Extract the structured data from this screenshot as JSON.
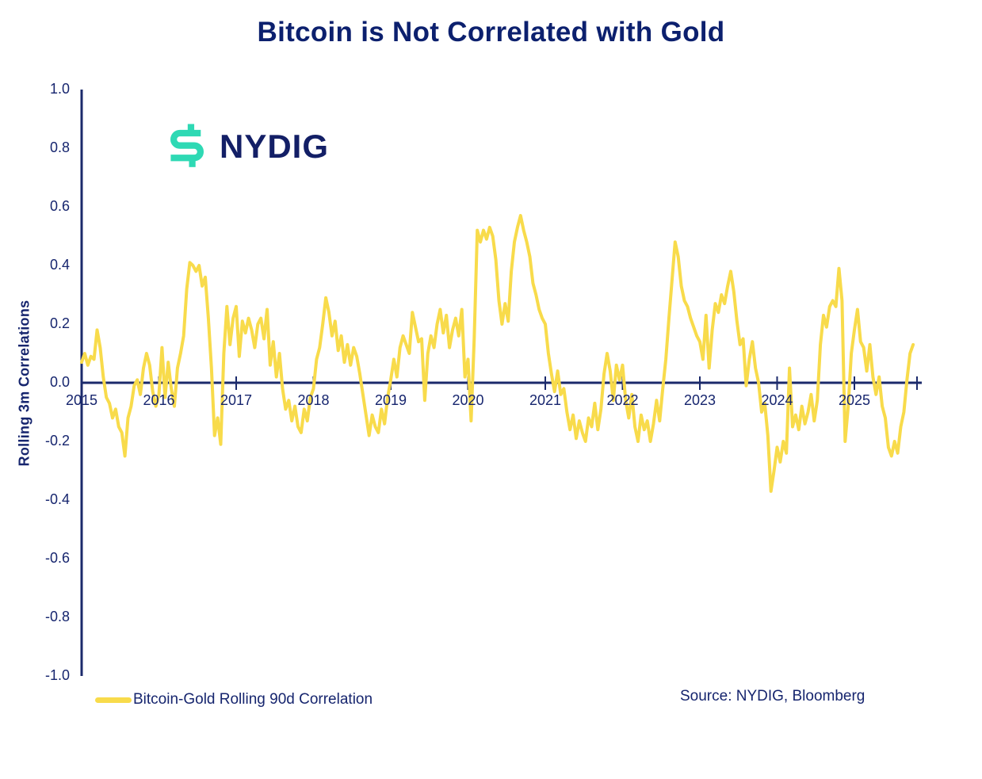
{
  "title": "Bitcoin is Not Correlated with Gold",
  "logo": {
    "text": "NYDIG"
  },
  "legend": {
    "label": "Bitcoin-Gold Rolling 90d Correlation"
  },
  "source": "Source: NYDIG, Bloomberg",
  "colors": {
    "navy_axis": "#1b2a6b",
    "navy_text": "#16256e",
    "title_navy": "#0c206e",
    "line_yellow": "#f8db4b",
    "logo_teal": "#2ed9b4",
    "logo_navy": "#131f66"
  },
  "chart_data": {
    "type": "line",
    "title": "Bitcoin is Not Correlated with Gold",
    "xlabel": "",
    "ylabel": "Rolling 3m Correlations",
    "ylim": [
      -1.0,
      1.0
    ],
    "xlim": [
      2015,
      2025.85
    ],
    "grid": false,
    "legend_position": "bottom-left",
    "y_ticks": [
      "1.0",
      "0.8",
      "0.6",
      "0.4",
      "0.2",
      "0.0",
      "-0.2",
      "-0.4",
      "-0.6",
      "-0.8",
      "-1.0"
    ],
    "x_ticks": [
      "2015",
      "2016",
      "2017",
      "2018",
      "2019",
      "2020",
      "2021",
      "2022",
      "2023",
      "2024",
      "2025"
    ],
    "series": [
      {
        "name": "Bitcoin-Gold Rolling 90d Correlation",
        "color": "#f8db4b",
        "points": [
          [
            2015.0,
            0.07
          ],
          [
            2015.04,
            0.1
          ],
          [
            2015.08,
            0.06
          ],
          [
            2015.12,
            0.09
          ],
          [
            2015.16,
            0.08
          ],
          [
            2015.2,
            0.18
          ],
          [
            2015.24,
            0.12
          ],
          [
            2015.28,
            0.02
          ],
          [
            2015.32,
            -0.05
          ],
          [
            2015.36,
            -0.07
          ],
          [
            2015.4,
            -0.12
          ],
          [
            2015.44,
            -0.09
          ],
          [
            2015.48,
            -0.15
          ],
          [
            2015.52,
            -0.17
          ],
          [
            2015.56,
            -0.25
          ],
          [
            2015.6,
            -0.12
          ],
          [
            2015.64,
            -0.08
          ],
          [
            2015.68,
            -0.01
          ],
          [
            2015.72,
            0.01
          ],
          [
            2015.76,
            -0.04
          ],
          [
            2015.8,
            0.05
          ],
          [
            2015.84,
            0.1
          ],
          [
            2015.88,
            0.06
          ],
          [
            2015.92,
            -0.03
          ],
          [
            2015.96,
            -0.08
          ],
          [
            2016.0,
            -0.04
          ],
          [
            2016.04,
            0.12
          ],
          [
            2016.08,
            -0.05
          ],
          [
            2016.12,
            0.07
          ],
          [
            2016.16,
            -0.02
          ],
          [
            2016.2,
            -0.08
          ],
          [
            2016.24,
            0.05
          ],
          [
            2016.28,
            0.1
          ],
          [
            2016.32,
            0.16
          ],
          [
            2016.36,
            0.32
          ],
          [
            2016.4,
            0.41
          ],
          [
            2016.44,
            0.4
          ],
          [
            2016.48,
            0.38
          ],
          [
            2016.52,
            0.4
          ],
          [
            2016.56,
            0.33
          ],
          [
            2016.6,
            0.36
          ],
          [
            2016.64,
            0.22
          ],
          [
            2016.68,
            0.05
          ],
          [
            2016.72,
            -0.18
          ],
          [
            2016.76,
            -0.12
          ],
          [
            2016.8,
            -0.21
          ],
          [
            2016.84,
            0.1
          ],
          [
            2016.88,
            0.26
          ],
          [
            2016.92,
            0.13
          ],
          [
            2016.96,
            0.22
          ],
          [
            2017.0,
            0.26
          ],
          [
            2017.04,
            0.09
          ],
          [
            2017.08,
            0.21
          ],
          [
            2017.12,
            0.17
          ],
          [
            2017.16,
            0.22
          ],
          [
            2017.2,
            0.18
          ],
          [
            2017.24,
            0.12
          ],
          [
            2017.28,
            0.2
          ],
          [
            2017.32,
            0.22
          ],
          [
            2017.36,
            0.15
          ],
          [
            2017.4,
            0.25
          ],
          [
            2017.44,
            0.06
          ],
          [
            2017.48,
            0.14
          ],
          [
            2017.52,
            0.02
          ],
          [
            2017.56,
            0.1
          ],
          [
            2017.6,
            -0.02
          ],
          [
            2017.64,
            -0.09
          ],
          [
            2017.68,
            -0.06
          ],
          [
            2017.72,
            -0.13
          ],
          [
            2017.76,
            -0.08
          ],
          [
            2017.8,
            -0.15
          ],
          [
            2017.84,
            -0.17
          ],
          [
            2017.88,
            -0.09
          ],
          [
            2017.92,
            -0.13
          ],
          [
            2017.96,
            -0.05
          ],
          [
            2018.0,
            -0.02
          ],
          [
            2018.04,
            0.08
          ],
          [
            2018.08,
            0.12
          ],
          [
            2018.12,
            0.2
          ],
          [
            2018.16,
            0.29
          ],
          [
            2018.2,
            0.24
          ],
          [
            2018.24,
            0.16
          ],
          [
            2018.28,
            0.21
          ],
          [
            2018.32,
            0.11
          ],
          [
            2018.36,
            0.16
          ],
          [
            2018.4,
            0.07
          ],
          [
            2018.44,
            0.13
          ],
          [
            2018.48,
            0.06
          ],
          [
            2018.52,
            0.12
          ],
          [
            2018.56,
            0.09
          ],
          [
            2018.6,
            0.03
          ],
          [
            2018.64,
            -0.04
          ],
          [
            2018.68,
            -0.11
          ],
          [
            2018.72,
            -0.18
          ],
          [
            2018.76,
            -0.11
          ],
          [
            2018.8,
            -0.15
          ],
          [
            2018.84,
            -0.17
          ],
          [
            2018.88,
            -0.09
          ],
          [
            2018.92,
            -0.14
          ],
          [
            2018.96,
            -0.05
          ],
          [
            2019.0,
            0.01
          ],
          [
            2019.04,
            0.08
          ],
          [
            2019.08,
            0.02
          ],
          [
            2019.12,
            0.12
          ],
          [
            2019.16,
            0.16
          ],
          [
            2019.2,
            0.13
          ],
          [
            2019.24,
            0.1
          ],
          [
            2019.28,
            0.24
          ],
          [
            2019.32,
            0.19
          ],
          [
            2019.36,
            0.14
          ],
          [
            2019.4,
            0.15
          ],
          [
            2019.44,
            -0.06
          ],
          [
            2019.48,
            0.1
          ],
          [
            2019.52,
            0.16
          ],
          [
            2019.56,
            0.12
          ],
          [
            2019.6,
            0.2
          ],
          [
            2019.64,
            0.25
          ],
          [
            2019.68,
            0.17
          ],
          [
            2019.72,
            0.23
          ],
          [
            2019.76,
            0.12
          ],
          [
            2019.8,
            0.18
          ],
          [
            2019.84,
            0.22
          ],
          [
            2019.88,
            0.16
          ],
          [
            2019.92,
            0.25
          ],
          [
            2019.96,
            0.02
          ],
          [
            2020.0,
            0.08
          ],
          [
            2020.04,
            -0.13
          ],
          [
            2020.08,
            0.15
          ],
          [
            2020.12,
            0.52
          ],
          [
            2020.16,
            0.48
          ],
          [
            2020.2,
            0.52
          ],
          [
            2020.24,
            0.49
          ],
          [
            2020.28,
            0.53
          ],
          [
            2020.32,
            0.5
          ],
          [
            2020.36,
            0.42
          ],
          [
            2020.4,
            0.28
          ],
          [
            2020.44,
            0.2
          ],
          [
            2020.48,
            0.27
          ],
          [
            2020.52,
            0.21
          ],
          [
            2020.56,
            0.38
          ],
          [
            2020.6,
            0.48
          ],
          [
            2020.64,
            0.53
          ],
          [
            2020.68,
            0.57
          ],
          [
            2020.72,
            0.52
          ],
          [
            2020.76,
            0.48
          ],
          [
            2020.8,
            0.43
          ],
          [
            2020.84,
            0.34
          ],
          [
            2020.88,
            0.3
          ],
          [
            2020.92,
            0.25
          ],
          [
            2020.96,
            0.22
          ],
          [
            2021.0,
            0.2
          ],
          [
            2021.04,
            0.1
          ],
          [
            2021.08,
            0.03
          ],
          [
            2021.12,
            -0.03
          ],
          [
            2021.16,
            0.04
          ],
          [
            2021.2,
            -0.04
          ],
          [
            2021.24,
            -0.02
          ],
          [
            2021.28,
            -0.1
          ],
          [
            2021.32,
            -0.16
          ],
          [
            2021.36,
            -0.11
          ],
          [
            2021.4,
            -0.19
          ],
          [
            2021.44,
            -0.13
          ],
          [
            2021.48,
            -0.17
          ],
          [
            2021.52,
            -0.2
          ],
          [
            2021.56,
            -0.12
          ],
          [
            2021.6,
            -0.15
          ],
          [
            2021.64,
            -0.07
          ],
          [
            2021.68,
            -0.16
          ],
          [
            2021.72,
            -0.09
          ],
          [
            2021.76,
            0.03
          ],
          [
            2021.8,
            0.1
          ],
          [
            2021.84,
            0.04
          ],
          [
            2021.88,
            -0.06
          ],
          [
            2021.92,
            0.06
          ],
          [
            2021.96,
            0.01
          ],
          [
            2022.0,
            0.06
          ],
          [
            2022.04,
            -0.06
          ],
          [
            2022.08,
            -0.12
          ],
          [
            2022.12,
            -0.04
          ],
          [
            2022.16,
            -0.15
          ],
          [
            2022.2,
            -0.2
          ],
          [
            2022.24,
            -0.11
          ],
          [
            2022.28,
            -0.16
          ],
          [
            2022.32,
            -0.13
          ],
          [
            2022.36,
            -0.2
          ],
          [
            2022.4,
            -0.14
          ],
          [
            2022.44,
            -0.06
          ],
          [
            2022.48,
            -0.13
          ],
          [
            2022.52,
            -0.02
          ],
          [
            2022.56,
            0.08
          ],
          [
            2022.6,
            0.22
          ],
          [
            2022.64,
            0.35
          ],
          [
            2022.68,
            0.48
          ],
          [
            2022.72,
            0.43
          ],
          [
            2022.76,
            0.33
          ],
          [
            2022.8,
            0.28
          ],
          [
            2022.84,
            0.26
          ],
          [
            2022.88,
            0.22
          ],
          [
            2022.92,
            0.19
          ],
          [
            2022.96,
            0.16
          ],
          [
            2023.0,
            0.14
          ],
          [
            2023.04,
            0.08
          ],
          [
            2023.08,
            0.23
          ],
          [
            2023.12,
            0.05
          ],
          [
            2023.16,
            0.18
          ],
          [
            2023.2,
            0.27
          ],
          [
            2023.24,
            0.24
          ],
          [
            2023.28,
            0.3
          ],
          [
            2023.32,
            0.27
          ],
          [
            2023.36,
            0.33
          ],
          [
            2023.4,
            0.38
          ],
          [
            2023.44,
            0.31
          ],
          [
            2023.48,
            0.21
          ],
          [
            2023.52,
            0.13
          ],
          [
            2023.56,
            0.15
          ],
          [
            2023.6,
            -0.01
          ],
          [
            2023.64,
            0.08
          ],
          [
            2023.68,
            0.14
          ],
          [
            2023.72,
            0.05
          ],
          [
            2023.76,
            0.0
          ],
          [
            2023.8,
            -0.1
          ],
          [
            2023.84,
            -0.07
          ],
          [
            2023.88,
            -0.18
          ],
          [
            2023.92,
            -0.37
          ],
          [
            2023.96,
            -0.3
          ],
          [
            2024.0,
            -0.22
          ],
          [
            2024.04,
            -0.27
          ],
          [
            2024.08,
            -0.2
          ],
          [
            2024.12,
            -0.24
          ],
          [
            2024.16,
            0.05
          ],
          [
            2024.2,
            -0.15
          ],
          [
            2024.24,
            -0.11
          ],
          [
            2024.28,
            -0.16
          ],
          [
            2024.32,
            -0.08
          ],
          [
            2024.36,
            -0.14
          ],
          [
            2024.4,
            -0.1
          ],
          [
            2024.44,
            -0.04
          ],
          [
            2024.48,
            -0.13
          ],
          [
            2024.52,
            -0.06
          ],
          [
            2024.56,
            0.13
          ],
          [
            2024.6,
            0.23
          ],
          [
            2024.64,
            0.19
          ],
          [
            2024.68,
            0.26
          ],
          [
            2024.72,
            0.28
          ],
          [
            2024.76,
            0.26
          ],
          [
            2024.8,
            0.39
          ],
          [
            2024.84,
            0.28
          ],
          [
            2024.88,
            -0.2
          ],
          [
            2024.92,
            -0.08
          ],
          [
            2024.96,
            0.1
          ],
          [
            2025.0,
            0.18
          ],
          [
            2025.04,
            0.25
          ],
          [
            2025.08,
            0.14
          ],
          [
            2025.12,
            0.12
          ],
          [
            2025.16,
            0.04
          ],
          [
            2025.2,
            0.13
          ],
          [
            2025.24,
            0.02
          ],
          [
            2025.28,
            -0.04
          ],
          [
            2025.32,
            0.02
          ],
          [
            2025.36,
            -0.08
          ],
          [
            2025.4,
            -0.12
          ],
          [
            2025.44,
            -0.22
          ],
          [
            2025.48,
            -0.25
          ],
          [
            2025.52,
            -0.2
          ],
          [
            2025.56,
            -0.24
          ],
          [
            2025.6,
            -0.15
          ],
          [
            2025.64,
            -0.1
          ],
          [
            2025.68,
            0.01
          ],
          [
            2025.72,
            0.1
          ],
          [
            2025.76,
            0.13
          ]
        ]
      }
    ]
  }
}
